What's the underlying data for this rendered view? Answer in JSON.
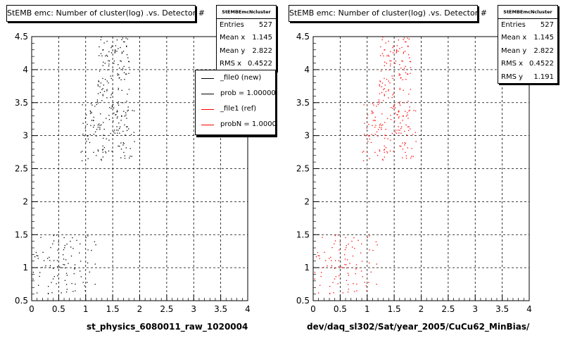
{
  "panels": [
    {
      "title": "StEMB emc: Number of cluster(log) .vs. Detector #",
      "xtitle": "st_physics_6080011_raw_1020004",
      "marker_color": "#000000",
      "stats": {
        "header": "StEMBEmcNcluster",
        "rows": [
          {
            "label": "Entries",
            "value": "527"
          },
          {
            "label": "Mean x",
            "value": "1.145"
          },
          {
            "label": "Mean y",
            "value": "2.822"
          },
          {
            "label": "RMS x",
            "value": "0.4522"
          }
        ]
      },
      "legend": [
        {
          "label": "_file0 (new)",
          "color": "#000000"
        },
        {
          "label": "prob = 1.000000",
          "color": "#000000"
        },
        {
          "label": "_file1 (ref)",
          "color": "#ff0000"
        },
        {
          "label": "probN = 1.000000",
          "color": "#ff0000"
        }
      ]
    },
    {
      "title": "StEMB emc: Number of cluster(log) .vs. Detector #",
      "xtitle": "dev/daq_sl302/Sat/year_2005/CuCu62_MinBias/",
      "marker_color": "#ff0000",
      "stats": {
        "header": "StEMBEmcNcluster",
        "rows": [
          {
            "label": "Entries",
            "value": "527"
          },
          {
            "label": "Mean x",
            "value": "1.145"
          },
          {
            "label": "Mean y",
            "value": "2.822"
          },
          {
            "label": "RMS x",
            "value": "0.4522"
          },
          {
            "label": "RMS y",
            "value": "1.191"
          }
        ]
      }
    }
  ],
  "chart_data": [
    {
      "type": "scatter",
      "title": "StEMB emc: Number of cluster(log) .vs. Detector #",
      "xlabel": "st_physics_6080011_raw_1020004",
      "ylabel": "",
      "xlim": [
        0,
        4
      ],
      "ylim": [
        0.5,
        4.5
      ],
      "x_ticks": [
        "0",
        "0.5",
        "1",
        "1.5",
        "2",
        "2.5",
        "3",
        "3.5",
        "4"
      ],
      "y_ticks": [
        "0.5",
        "1",
        "1.5",
        "2",
        "2.5",
        "3",
        "3.5",
        "4",
        "4.5"
      ],
      "grid": true,
      "color": "#000000",
      "clusters": [
        {
          "x_range": [
            0.0,
            0.8
          ],
          "y_range": [
            0.6,
            1.5
          ],
          "points": 75
        },
        {
          "x_range": [
            0.8,
            1.2
          ],
          "y_range": [
            0.6,
            1.5
          ],
          "points": 20
        },
        {
          "x_range": [
            0.9,
            1.9
          ],
          "y_range": [
            2.6,
            3.5
          ],
          "points": 140
        },
        {
          "x_range": [
            1.2,
            1.8
          ],
          "y_range": [
            3.5,
            4.5
          ],
          "points": 110
        }
      ]
    },
    {
      "type": "scatter",
      "title": "StEMB emc: Number of cluster(log) .vs. Detector #",
      "xlabel": "dev/daq_sl302/Sat/year_2005/CuCu62_MinBias/",
      "ylabel": "",
      "xlim": [
        0,
        4
      ],
      "ylim": [
        0.5,
        4.5
      ],
      "x_ticks": [
        "0",
        "0.5",
        "1",
        "1.5",
        "2",
        "2.5",
        "3",
        "3.5",
        "4"
      ],
      "y_ticks": [
        "0.5",
        "1",
        "1.5",
        "2",
        "2.5",
        "3",
        "3.5",
        "4",
        "4.5"
      ],
      "grid": true,
      "color": "#ff0000",
      "clusters": [
        {
          "x_range": [
            0.0,
            0.8
          ],
          "y_range": [
            0.6,
            1.5
          ],
          "points": 75
        },
        {
          "x_range": [
            0.8,
            1.2
          ],
          "y_range": [
            0.6,
            1.5
          ],
          "points": 20
        },
        {
          "x_range": [
            0.9,
            1.9
          ],
          "y_range": [
            2.6,
            3.5
          ],
          "points": 140
        },
        {
          "x_range": [
            1.2,
            1.8
          ],
          "y_range": [
            3.5,
            4.5
          ],
          "points": 110
        }
      ]
    }
  ]
}
